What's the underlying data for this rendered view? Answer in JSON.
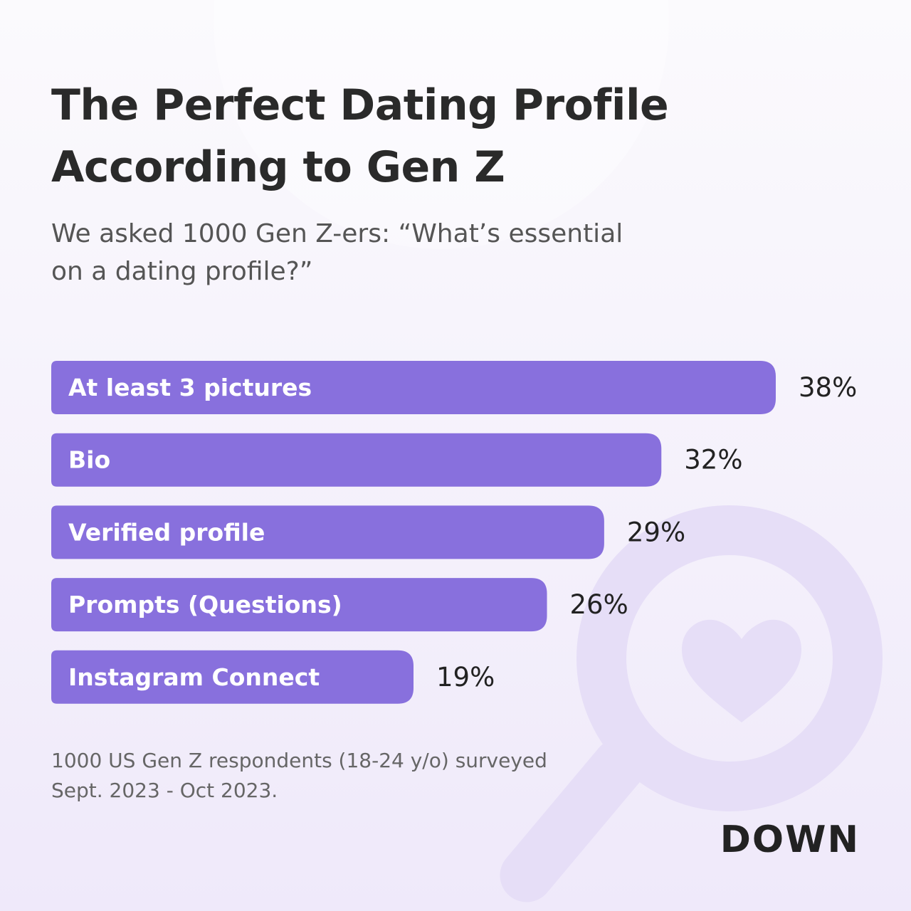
{
  "chart_data": {
    "type": "bar",
    "orientation": "horizontal",
    "title": "The Perfect Dating Profile According to Gen Z",
    "subtitle": "We asked 1000 Gen Z-ers: “What’s essential on a dating profile?”",
    "categories": [
      "At least 3 pictures",
      "Bio",
      "Verified profile",
      "Prompts (Questions)",
      "Instagram Connect"
    ],
    "values": [
      38,
      32,
      29,
      26,
      19
    ],
    "value_labels": [
      "38%",
      "32%",
      "29%",
      "26%",
      "19%"
    ],
    "color": "#8870dd",
    "note": "1000 US Gen Z respondents (18-24 y/o) surveyed Sept. 2023 - Oct 2023.",
    "logo": "DOWN"
  }
}
